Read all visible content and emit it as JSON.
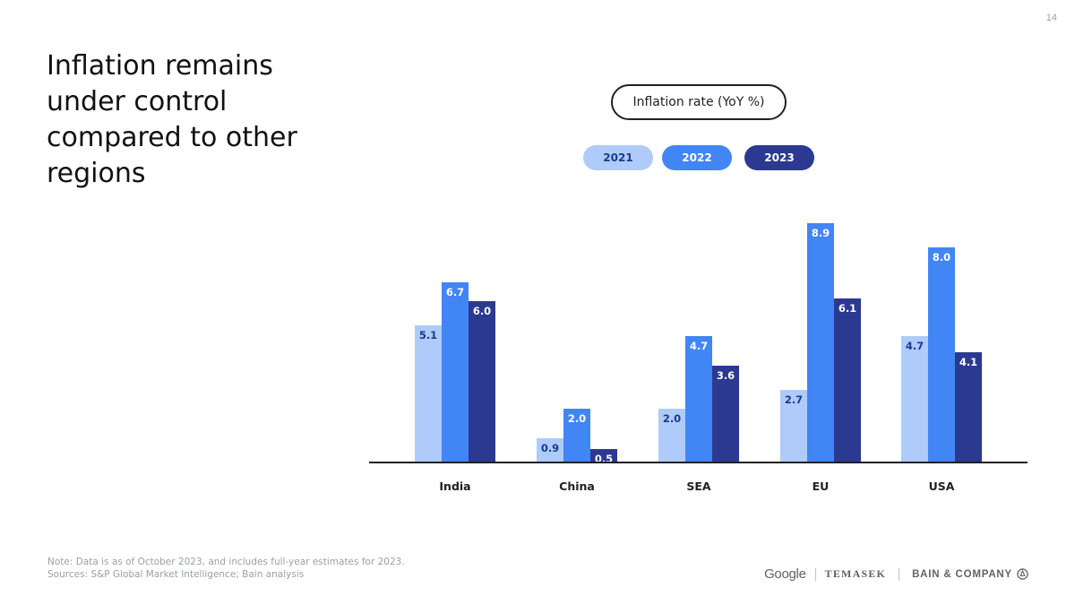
{
  "page_number": "14",
  "title": "Inflation remains\nunder control\ncompared to other\nregions",
  "chart_data": {
    "type": "bar",
    "title": "Inflation rate (YoY %)",
    "categories": [
      "India",
      "China",
      "SEA",
      "EU",
      "USA"
    ],
    "series": [
      {
        "name": "2021",
        "values": [
          5.1,
          0.9,
          2.0,
          2.7,
          4.7
        ],
        "color": "#aecbfa",
        "label_color": "#1a3a8f"
      },
      {
        "name": "2022",
        "values": [
          6.7,
          2.0,
          4.7,
          8.9,
          8.0
        ],
        "color": "#4285f4",
        "label_color": "#ffffff"
      },
      {
        "name": "2023",
        "values": [
          6.0,
          0.5,
          3.6,
          6.1,
          4.1
        ],
        "color": "#2b3990",
        "label_color": "#ffffff"
      }
    ],
    "ylim": [
      0,
      10
    ],
    "grid": false,
    "legend_position": "top-center"
  },
  "footnote": {
    "note": "Note: Data is as of October 2023, and includes full-year estimates for 2023.",
    "sources": "Sources: S&P Global Market Intelligence; Bain analysis"
  },
  "logos": {
    "google": "Google",
    "temasek": "TEMASEK",
    "bain": "BAIN & COMPANY"
  }
}
